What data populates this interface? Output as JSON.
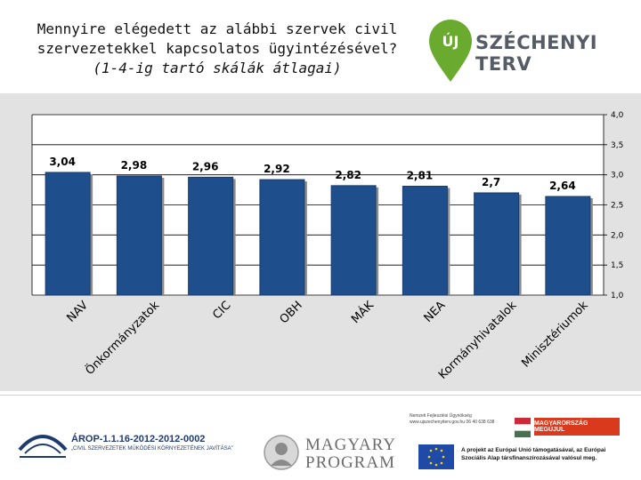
{
  "header": {
    "title_line1": "Mennyire elégedett az alábbi szervek  civil",
    "title_line2": "szervezetekkel kapcsolatos ügyintézésével?",
    "title_line3": "(1-4-ig tartó skálák átlagai)",
    "logo_mark": "ÚJ",
    "logo_text": "SZÉCHENYI TERV"
  },
  "chart_data": {
    "type": "bar",
    "title": "Mennyire elégedett az alábbi szervek  civil szervezetekkel kapcsolatos ügyintézésével? (1-4-ig tartó skálák átlagai)",
    "categories": [
      "NAV",
      "Önkormányzatok",
      "CIC",
      "OBH",
      "MÁK",
      "NEA",
      "Kormányhivatalok",
      "Minisztériumok"
    ],
    "values": [
      3.04,
      2.98,
      2.96,
      2.92,
      2.82,
      2.81,
      2.7,
      2.64
    ],
    "value_labels": [
      "3,04",
      "2,98",
      "2,96",
      "2,92",
      "2,82",
      "2,81",
      "2,7",
      "2,64"
    ],
    "ylim": [
      1.0,
      4.0
    ],
    "yticks": [
      "1,0",
      "1,5",
      "2,0",
      "2,5",
      "3,0",
      "3,5",
      "4,0"
    ],
    "ytick_values": [
      1.0,
      1.5,
      2.0,
      2.5,
      3.0,
      3.5,
      4.0
    ],
    "y_axis_side": "right",
    "grid": true,
    "bar_color": "#1f4e8c",
    "background_color": "#e2e2e2"
  },
  "footer": {
    "arop_code": "ÁROP-1.1.16-2012-2012-0002",
    "arop_desc": "„CIVIL SZERVEZETEK MŰKÖDÉSI KÖRNYEZETÉNEK JAVÍTÁSA”",
    "magyary_line1": "MAGYARY",
    "magyary_line2": "PROGRAM",
    "nfu_text": "Nemzeti Fejlesztési Ügynökség www.ujszechenyiterv.gov.hu 06 40 638 638",
    "mo_badge": "MAGYARORSZÁG MEGÚJUL",
    "eu_text": "A projekt az Európai Unió támogatásával, az Európai Szociális Alap társfinanszírozásával valósul meg."
  }
}
